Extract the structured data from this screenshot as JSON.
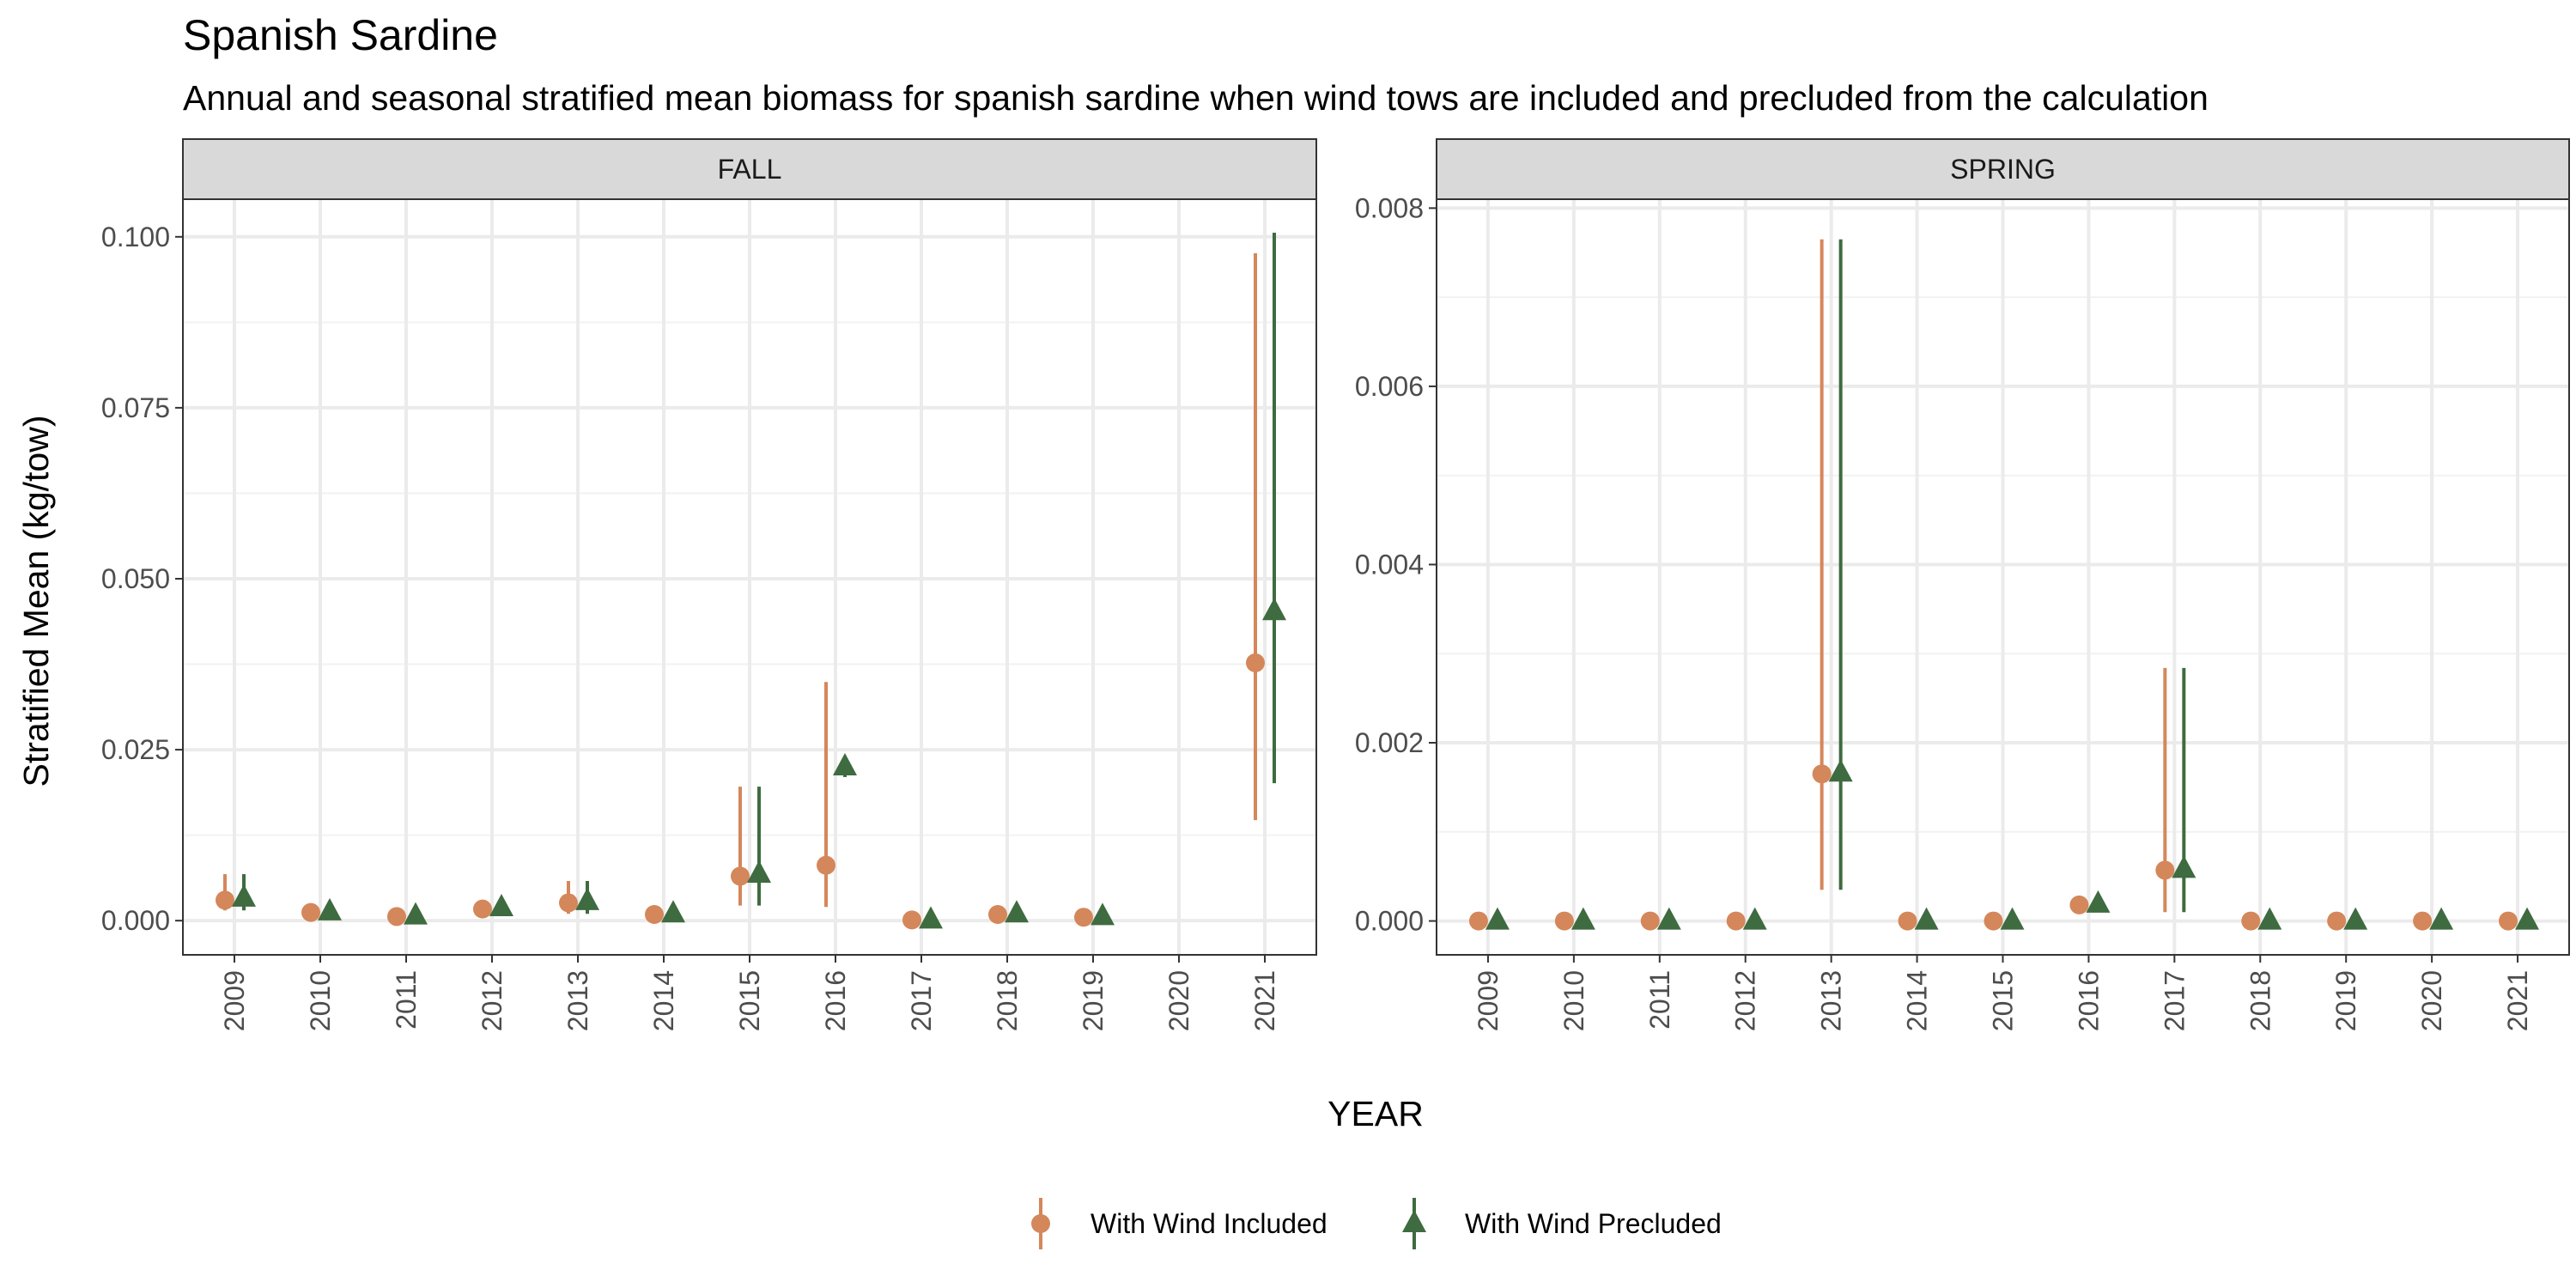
{
  "chart_data": {
    "type": "scatter",
    "title": "Spanish Sardine",
    "subtitle": "Annual and seasonal stratified mean biomass for spanish sardine when wind tows are included and precluded from the calculation",
    "xlabel": "YEAR",
    "ylabel": "Stratified Mean (kg/tow)",
    "grid": true,
    "legend_position": "bottom",
    "series_styles": [
      {
        "name": "With Wind Included",
        "color": "#D4875A",
        "shape": "circle"
      },
      {
        "name": "With Wind Precluded",
        "color": "#3E6B3F",
        "shape": "triangle"
      }
    ],
    "panels": [
      {
        "name": "FALL",
        "x_categories": [
          "2009",
          "2010",
          "2011",
          "2012",
          "2013",
          "2014",
          "2015",
          "2016",
          "2017",
          "2018",
          "2019",
          "2020",
          "2021"
        ],
        "ylim": [
          -0.005,
          0.1055
        ],
        "yticks": [
          0.0,
          0.025,
          0.05,
          0.075,
          0.1
        ],
        "ytick_labels": [
          "0.000",
          "0.025",
          "0.050",
          "0.075",
          "0.100"
        ],
        "series": [
          {
            "name": "With Wind Included",
            "points": [
              {
                "x": "2009",
                "y": 0.003,
                "lo": 0.0015,
                "hi": 0.0068
              },
              {
                "x": "2010",
                "y": 0.0012
              },
              {
                "x": "2011",
                "y": 0.0006
              },
              {
                "x": "2012",
                "y": 0.0017
              },
              {
                "x": "2013",
                "y": 0.0026,
                "lo": 0.001,
                "hi": 0.0058
              },
              {
                "x": "2014",
                "y": 0.0009
              },
              {
                "x": "2015",
                "y": 0.0065,
                "lo": 0.0022,
                "hi": 0.0196
              },
              {
                "x": "2016",
                "y": 0.0081,
                "lo": 0.002,
                "hi": 0.0349
              },
              {
                "x": "2017",
                "y": 0.0001
              },
              {
                "x": "2018",
                "y": 0.0009
              },
              {
                "x": "2019",
                "y": 0.0005
              },
              {
                "x": "2021",
                "y": 0.0377,
                "lo": 0.0147,
                "hi": 0.0976
              }
            ]
          },
          {
            "name": "With Wind Precluded",
            "points": [
              {
                "x": "2009",
                "y": 0.0033,
                "lo": 0.0015,
                "hi": 0.0068
              },
              {
                "x": "2010",
                "y": 0.0013
              },
              {
                "x": "2011",
                "y": 0.0007
              },
              {
                "x": "2012",
                "y": 0.0019
              },
              {
                "x": "2013",
                "y": 0.0028,
                "lo": 0.001,
                "hi": 0.0058
              },
              {
                "x": "2014",
                "y": 0.001
              },
              {
                "x": "2015",
                "y": 0.0068,
                "lo": 0.0022,
                "hi": 0.0196
              },
              {
                "x": "2016",
                "y": 0.0225,
                "lo": 0.021,
                "hi": 0.0235
              },
              {
                "x": "2017",
                "y": 0.0001
              },
              {
                "x": "2018",
                "y": 0.001
              },
              {
                "x": "2019",
                "y": 0.0006
              },
              {
                "x": "2021",
                "y": 0.0452,
                "lo": 0.0201,
                "hi": 0.1006
              }
            ]
          }
        ]
      },
      {
        "name": "SPRING",
        "x_categories": [
          "2009",
          "2010",
          "2011",
          "2012",
          "2013",
          "2014",
          "2015",
          "2016",
          "2017",
          "2018",
          "2019",
          "2020",
          "2021"
        ],
        "ylim": [
          -0.00038,
          0.0081
        ],
        "yticks": [
          0.0,
          0.002,
          0.004,
          0.006,
          0.008
        ],
        "ytick_labels": [
          "0.000",
          "0.002",
          "0.004",
          "0.006",
          "0.008"
        ],
        "series": [
          {
            "name": "With Wind Included",
            "points": [
              {
                "x": "2009",
                "y": 0.0
              },
              {
                "x": "2010",
                "y": 0.0
              },
              {
                "x": "2011",
                "y": 0.0
              },
              {
                "x": "2012",
                "y": 0.0
              },
              {
                "x": "2013",
                "y": 0.00165,
                "lo": 0.00035,
                "hi": 0.00765
              },
              {
                "x": "2014",
                "y": 0.0
              },
              {
                "x": "2015",
                "y": 0.0
              },
              {
                "x": "2016",
                "y": 0.00018
              },
              {
                "x": "2017",
                "y": 0.00057,
                "lo": 0.0001,
                "hi": 0.00284
              },
              {
                "x": "2018",
                "y": 0.0
              },
              {
                "x": "2019",
                "y": 0.0
              },
              {
                "x": "2020",
                "y": 0.0
              },
              {
                "x": "2021",
                "y": 0.0
              }
            ]
          },
          {
            "name": "With Wind Precluded",
            "points": [
              {
                "x": "2009",
                "y": 0.0
              },
              {
                "x": "2010",
                "y": 0.0
              },
              {
                "x": "2011",
                "y": 0.0
              },
              {
                "x": "2012",
                "y": 0.0
              },
              {
                "x": "2013",
                "y": 0.00166,
                "lo": 0.00035,
                "hi": 0.00765
              },
              {
                "x": "2014",
                "y": 0.0
              },
              {
                "x": "2015",
                "y": 0.0
              },
              {
                "x": "2016",
                "y": 0.00019
              },
              {
                "x": "2017",
                "y": 0.00058,
                "lo": 0.0001,
                "hi": 0.00284
              },
              {
                "x": "2018",
                "y": 0.0
              },
              {
                "x": "2019",
                "y": 0.0
              },
              {
                "x": "2020",
                "y": 0.0
              },
              {
                "x": "2021",
                "y": 0.0
              }
            ]
          }
        ]
      }
    ]
  }
}
